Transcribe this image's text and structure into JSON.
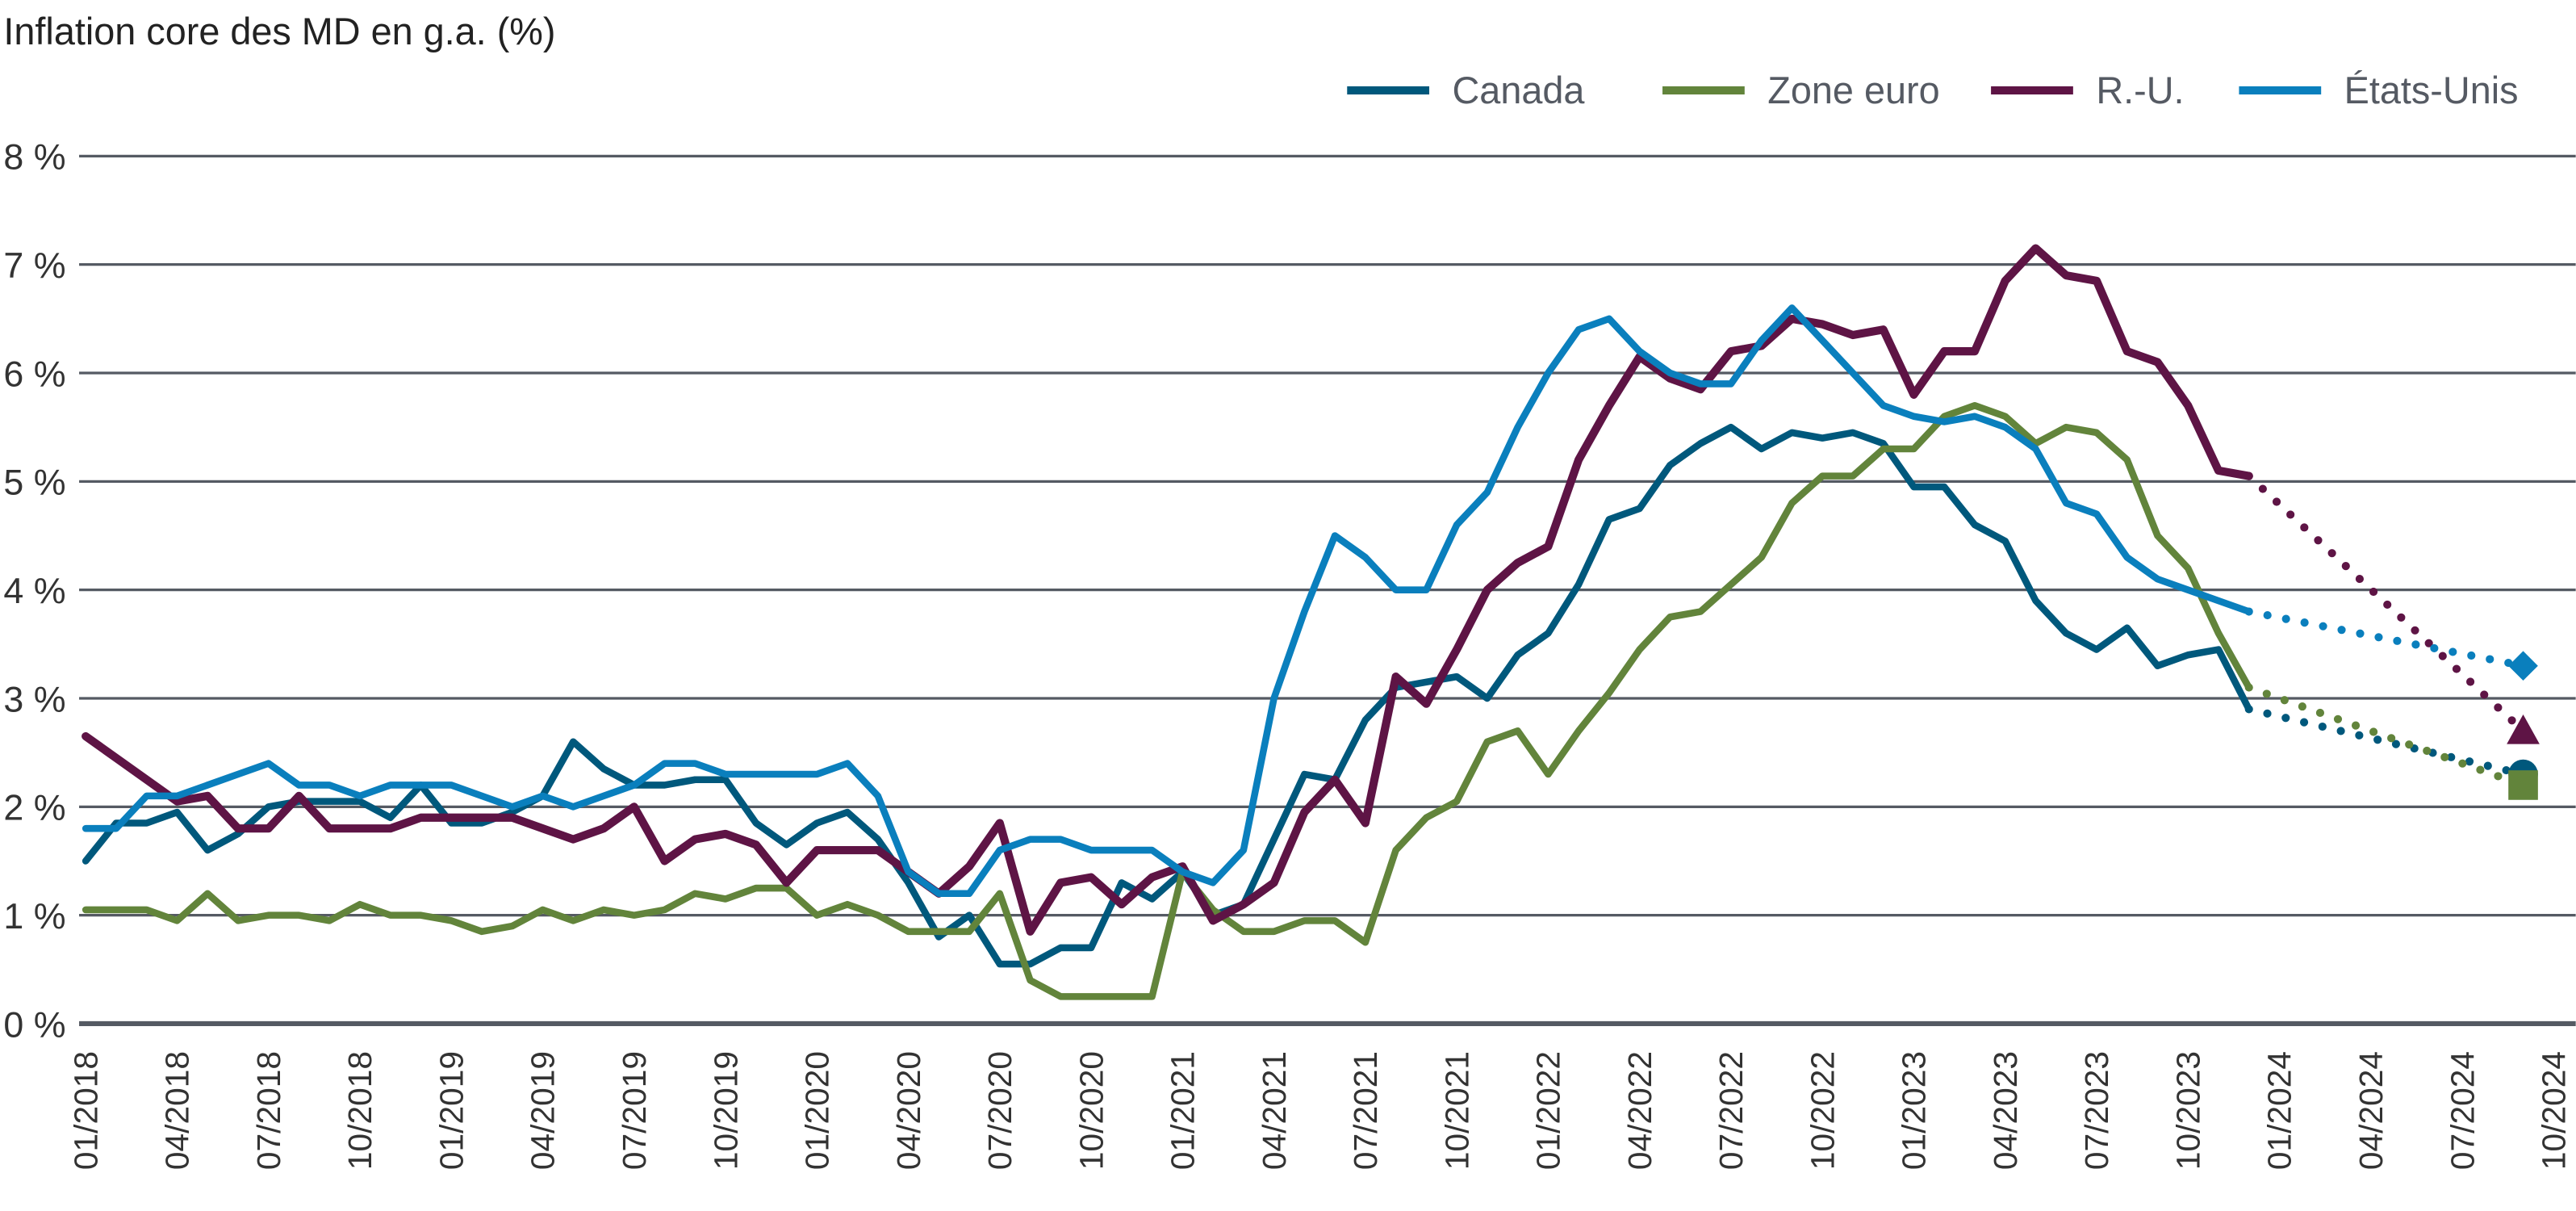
{
  "chart_data": {
    "type": "line",
    "title": "Inflation core des MD en g.a. (%)",
    "xlabel": "",
    "ylabel": "",
    "x_start": "01/2018",
    "x_end": "10/2024",
    "x_ticks": [
      "01/2018",
      "04/2018",
      "07/2018",
      "10/2018",
      "01/2019",
      "04/2019",
      "07/2019",
      "10/2019",
      "01/2020",
      "04/2020",
      "07/2020",
      "10/2020",
      "01/2021",
      "04/2021",
      "07/2021",
      "10/2021",
      "01/2022",
      "04/2022",
      "07/2022",
      "10/2022",
      "01/2023",
      "04/2023",
      "07/2023",
      "10/2023",
      "01/2024",
      "04/2024",
      "07/2024",
      "10/2024"
    ],
    "ylim": [
      0,
      8
    ],
    "y_ticks": [
      "0 %",
      "1 %",
      "2 %",
      "3 %",
      "4 %",
      "5 %",
      "6 %",
      "7 %",
      "8 %"
    ],
    "grid": "horizontal",
    "legend_position": "top-right",
    "series": [
      {
        "name": "Canada",
        "color": "#00587c",
        "marker": "circle",
        "start": "01/2018",
        "values": [
          1.5,
          1.85,
          1.85,
          1.95,
          1.6,
          1.75,
          2.0,
          2.05,
          2.05,
          2.05,
          1.9,
          2.2,
          1.85,
          1.85,
          1.95,
          2.1,
          2.6,
          2.35,
          2.2,
          2.2,
          2.25,
          2.25,
          1.85,
          1.65,
          1.85,
          1.95,
          1.7,
          1.3,
          0.8,
          1.0,
          0.55,
          0.55,
          0.7,
          0.7,
          1.3,
          1.15,
          1.4,
          1.0,
          1.1,
          1.7,
          2.3,
          2.25,
          2.8,
          3.1,
          3.15,
          3.2,
          3.0,
          3.4,
          3.6,
          4.05,
          4.65,
          4.75,
          5.15,
          5.35,
          5.5,
          5.3,
          5.45,
          5.4,
          5.45,
          5.35,
          4.95,
          4.95,
          4.6,
          4.45,
          3.9,
          3.6,
          3.45,
          3.65,
          3.3,
          3.4,
          3.45,
          2.9
        ],
        "projection": {
          "date": "09/2024",
          "value": 2.3
        }
      },
      {
        "name": "Zone euro",
        "color": "#62843b",
        "marker": "square",
        "start": "01/2018",
        "values": [
          1.05,
          1.05,
          1.05,
          0.95,
          1.2,
          0.95,
          1.0,
          1.0,
          0.95,
          1.1,
          1.0,
          1.0,
          0.95,
          0.85,
          0.9,
          1.05,
          0.95,
          1.05,
          1.0,
          1.05,
          1.2,
          1.15,
          1.25,
          1.25,
          1.0,
          1.1,
          1.0,
          0.85,
          0.85,
          0.85,
          1.2,
          0.4,
          0.25,
          0.25,
          0.25,
          0.25,
          1.4,
          1.05,
          0.85,
          0.85,
          0.95,
          0.95,
          0.75,
          1.6,
          1.9,
          2.05,
          2.6,
          2.7,
          2.3,
          2.7,
          3.05,
          3.45,
          3.75,
          3.8,
          4.05,
          4.3,
          4.8,
          5.05,
          5.05,
          5.3,
          5.3,
          5.6,
          5.7,
          5.6,
          5.35,
          5.5,
          5.45,
          5.2,
          4.5,
          4.2,
          3.6,
          3.1
        ],
        "projection": {
          "date": "09/2024",
          "value": 2.2
        }
      },
      {
        "name": "R.-U.",
        "color": "#5e1445",
        "marker": "triangle",
        "start": "01/2018",
        "values": [
          2.65,
          2.45,
          2.25,
          2.05,
          2.1,
          1.8,
          1.8,
          2.1,
          1.8,
          1.8,
          1.8,
          1.9,
          1.9,
          1.9,
          1.9,
          1.8,
          1.7,
          1.8,
          2.0,
          1.5,
          1.7,
          1.75,
          1.65,
          1.3,
          1.6,
          1.6,
          1.6,
          1.4,
          1.2,
          1.45,
          1.85,
          0.85,
          1.3,
          1.35,
          1.1,
          1.35,
          1.45,
          0.95,
          1.1,
          1.3,
          1.95,
          2.25,
          1.85,
          3.2,
          2.95,
          3.45,
          4.0,
          4.25,
          4.4,
          5.2,
          5.7,
          6.15,
          5.95,
          5.85,
          6.2,
          6.25,
          6.5,
          6.45,
          6.35,
          6.4,
          5.8,
          6.2,
          6.2,
          6.85,
          7.15,
          6.9,
          6.85,
          6.2,
          6.1,
          5.7,
          5.1,
          5.05
        ],
        "projection": {
          "date": "09/2024",
          "value": 2.7
        }
      },
      {
        "name": "États-Unis",
        "color": "#0a7fbd",
        "marker": "diamond",
        "start": "01/2018",
        "values": [
          1.8,
          1.8,
          2.1,
          2.1,
          2.2,
          2.3,
          2.4,
          2.2,
          2.2,
          2.1,
          2.2,
          2.2,
          2.2,
          2.1,
          2.0,
          2.1,
          2.0,
          2.1,
          2.2,
          2.4,
          2.4,
          2.3,
          2.3,
          2.3,
          2.3,
          2.4,
          2.1,
          1.4,
          1.2,
          1.2,
          1.6,
          1.7,
          1.7,
          1.6,
          1.6,
          1.6,
          1.4,
          1.3,
          1.6,
          3.0,
          3.8,
          4.5,
          4.3,
          4.0,
          4.0,
          4.6,
          4.9,
          5.5,
          6.0,
          6.4,
          6.5,
          6.2,
          6.0,
          5.9,
          5.9,
          6.3,
          6.6,
          6.3,
          6.0,
          5.7,
          5.6,
          5.55,
          5.6,
          5.5,
          5.3,
          4.8,
          4.7,
          4.3,
          4.1,
          4.0,
          3.9,
          3.8
        ],
        "projection": {
          "date": "09/2024",
          "value": 3.3
        }
      }
    ]
  }
}
